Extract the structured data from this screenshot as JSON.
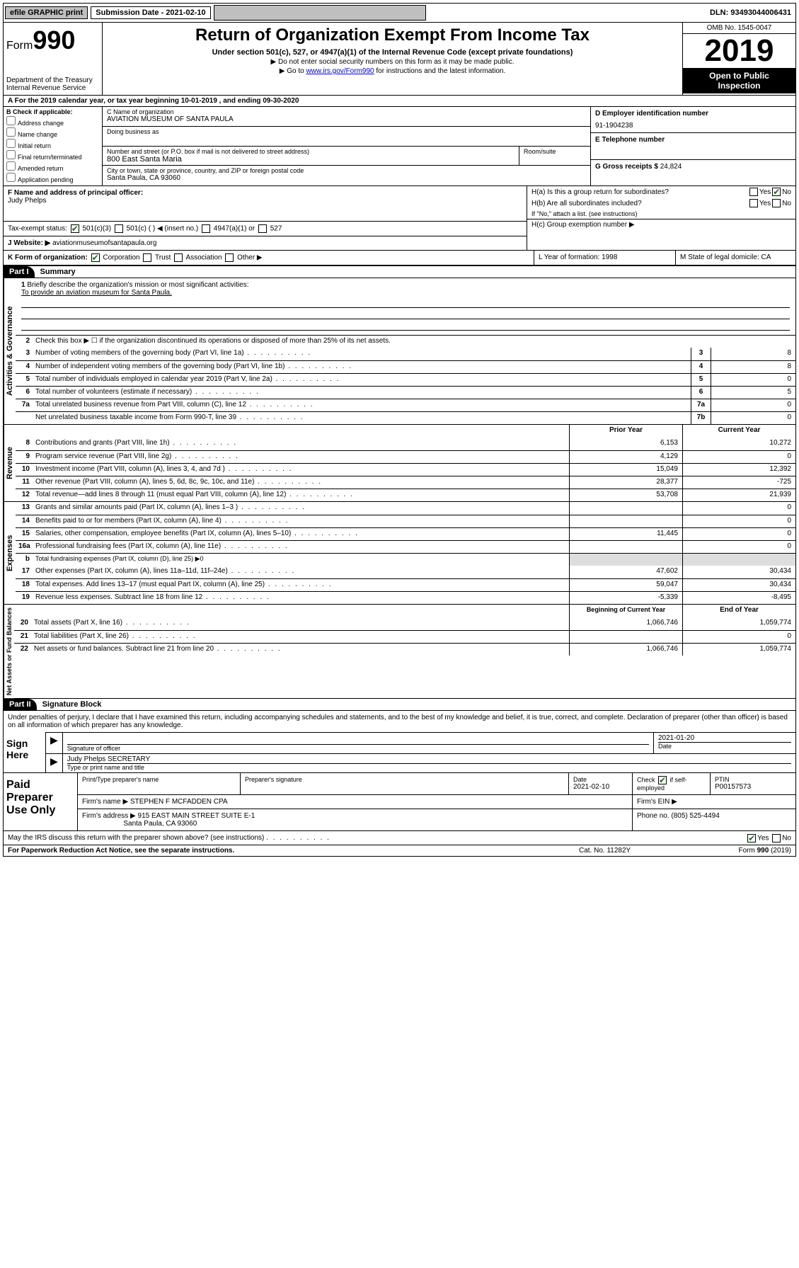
{
  "topbar": {
    "efile": "efile GRAPHIC print",
    "submission": "Submission Date - 2021-02-10",
    "dln": "DLN: 93493044006431"
  },
  "header": {
    "form_prefix": "Form",
    "form_number": "990",
    "dept1": "Department of the Treasury",
    "dept2": "Internal Revenue Service",
    "title": "Return of Organization Exempt From Income Tax",
    "subtitle": "Under section 501(c), 527, or 4947(a)(1) of the Internal Revenue Code (except private foundations)",
    "note1": "▶ Do not enter social security numbers on this form as it may be made public.",
    "note2_pre": "▶ Go to ",
    "note2_link": "www.irs.gov/Form990",
    "note2_post": " for instructions and the latest information.",
    "omb": "OMB No. 1545-0047",
    "year": "2019",
    "inspection1": "Open to Public",
    "inspection2": "Inspection"
  },
  "row_a": "A   For the 2019 calendar year, or tax year beginning 10-01-2019    , and ending 09-30-2020",
  "section_b": {
    "title": "B Check if applicable:",
    "opts": [
      "Address change",
      "Name change",
      "Initial return",
      "Final return/terminated",
      "Amended return",
      "Application pending"
    ]
  },
  "section_c": {
    "name_label": "C Name of organization",
    "name": "AVIATION MUSEUM OF SANTA PAULA",
    "dba_label": "Doing business as",
    "addr_label": "Number and street (or P.O. box if mail is not delivered to street address)",
    "room_label": "Room/suite",
    "addr": "800 East Santa Maria",
    "city_label": "City or town, state or province, country, and ZIP or foreign postal code",
    "city": "Santa Paula, CA  93060"
  },
  "section_d": {
    "label": "D Employer identification number",
    "value": "91-1904238"
  },
  "section_e": {
    "label": "E Telephone number",
    "value": ""
  },
  "section_g": {
    "label": "G Gross receipts $",
    "value": "24,824"
  },
  "section_f": {
    "label": "F  Name and address of principal officer:",
    "name": "Judy Phelps"
  },
  "section_h": {
    "ha": "H(a)  Is this a group return for subordinates?",
    "hb": "H(b)  Are all subordinates included?",
    "hb_note": "If \"No,\" attach a list. (see instructions)",
    "hc": "H(c)  Group exemption number ▶"
  },
  "tax_status": {
    "label": "Tax-exempt status:",
    "o1": "501(c)(3)",
    "o2": "501(c) (   ) ◀ (insert no.)",
    "o3": "4947(a)(1) or",
    "o4": "527"
  },
  "website": {
    "label": "J   Website: ▶",
    "value": "aviationmuseumofsantapaula.org"
  },
  "row_k": {
    "k": "K Form of organization:",
    "k_opts": [
      "Corporation",
      "Trust",
      "Association",
      "Other ▶"
    ],
    "l": "L Year of formation: 1998",
    "m": "M State of legal domicile: CA"
  },
  "part1": {
    "header": "Part I",
    "title": "Summary",
    "tab_gov": "Activities & Governance",
    "tab_rev": "Revenue",
    "tab_exp": "Expenses",
    "tab_net": "Net Assets or Fund Balances",
    "line1_label": "Briefly describe the organization's mission or most significant activities:",
    "line1_text": "To provide an aviation museum for Santa Paula.",
    "line2": "Check this box ▶ ☐  if the organization discontinued its operations or disposed of more than 25% of its net assets.",
    "lines_simple": [
      {
        "n": "3",
        "d": "Number of voting members of the governing body (Part VI, line 1a)",
        "b": "3",
        "v": "8"
      },
      {
        "n": "4",
        "d": "Number of independent voting members of the governing body (Part VI, line 1b)",
        "b": "4",
        "v": "8"
      },
      {
        "n": "5",
        "d": "Total number of individuals employed in calendar year 2019 (Part V, line 2a)",
        "b": "5",
        "v": "0"
      },
      {
        "n": "6",
        "d": "Total number of volunteers (estimate if necessary)",
        "b": "6",
        "v": "5"
      },
      {
        "n": "7a",
        "d": "Total unrelated business revenue from Part VIII, column (C), line 12",
        "b": "7a",
        "v": "0"
      },
      {
        "n": "",
        "d": "Net unrelated business taxable income from Form 990-T, line 39",
        "b": "7b",
        "v": "0"
      }
    ],
    "col_prior": "Prior Year",
    "col_current": "Current Year",
    "col_begin": "Beginning of Current Year",
    "col_end": "End of Year",
    "revenue": [
      {
        "n": "8",
        "d": "Contributions and grants (Part VIII, line 1h)",
        "p": "6,153",
        "c": "10,272"
      },
      {
        "n": "9",
        "d": "Program service revenue (Part VIII, line 2g)",
        "p": "4,129",
        "c": "0"
      },
      {
        "n": "10",
        "d": "Investment income (Part VIII, column (A), lines 3, 4, and 7d )",
        "p": "15,049",
        "c": "12,392"
      },
      {
        "n": "11",
        "d": "Other revenue (Part VIII, column (A), lines 5, 6d, 8c, 9c, 10c, and 11e)",
        "p": "28,377",
        "c": "-725"
      },
      {
        "n": "12",
        "d": "Total revenue—add lines 8 through 11 (must equal Part VIII, column (A), line 12)",
        "p": "53,708",
        "c": "21,939"
      }
    ],
    "expenses": [
      {
        "n": "13",
        "d": "Grants and similar amounts paid (Part IX, column (A), lines 1–3 )",
        "p": "",
        "c": "0"
      },
      {
        "n": "14",
        "d": "Benefits paid to or for members (Part IX, column (A), line 4)",
        "p": "",
        "c": "0"
      },
      {
        "n": "15",
        "d": "Salaries, other compensation, employee benefits (Part IX, column (A), lines 5–10)",
        "p": "11,445",
        "c": "0"
      },
      {
        "n": "16a",
        "d": "Professional fundraising fees (Part IX, column (A), line 11e)",
        "p": "",
        "c": "0"
      }
    ],
    "line16b": "Total fundraising expenses (Part IX, column (D), line 25) ▶0",
    "expenses2": [
      {
        "n": "17",
        "d": "Other expenses (Part IX, column (A), lines 11a–11d, 11f–24e)",
        "p": "47,602",
        "c": "30,434"
      },
      {
        "n": "18",
        "d": "Total expenses. Add lines 13–17 (must equal Part IX, column (A), line 25)",
        "p": "59,047",
        "c": "30,434"
      },
      {
        "n": "19",
        "d": "Revenue less expenses. Subtract line 18 from line 12",
        "p": "-5,339",
        "c": "-8,495"
      }
    ],
    "netassets": [
      {
        "n": "20",
        "d": "Total assets (Part X, line 16)",
        "p": "1,066,746",
        "c": "1,059,774"
      },
      {
        "n": "21",
        "d": "Total liabilities (Part X, line 26)",
        "p": "",
        "c": "0"
      },
      {
        "n": "22",
        "d": "Net assets or fund balances. Subtract line 21 from line 20",
        "p": "1,066,746",
        "c": "1,059,774"
      }
    ]
  },
  "part2": {
    "header": "Part II",
    "title": "Signature Block",
    "declare": "Under penalties of perjury, I declare that I have examined this return, including accompanying schedules and statements, and to the best of my knowledge and belief, it is true, correct, and complete. Declaration of preparer (other than officer) is based on all information of which preparer has any knowledge.",
    "sign_here": "Sign Here",
    "sig_officer": "Signature of officer",
    "sig_date": "2021-01-20",
    "date_label": "Date",
    "name_title": "Judy Phelps SECRETARY",
    "name_label": "Type or print name and title"
  },
  "paid": {
    "title": "Paid Preparer Use Only",
    "h1": "Print/Type preparer's name",
    "h2": "Preparer's signature",
    "h3": "Date",
    "date": "2021-02-10",
    "h4": "Check ☑ if self-employed",
    "h5": "PTIN",
    "ptin": "P00157573",
    "firm_label": "Firm's name    ▶",
    "firm": "STEPHEN F MCFADDEN CPA",
    "ein_label": "Firm's EIN ▶",
    "addr_label": "Firm's address ▶",
    "addr1": "915 EAST MAIN STREET SUITE E-1",
    "addr2": "Santa Paula, CA  93060",
    "phone_label": "Phone no.",
    "phone": "(805) 525-4494",
    "discuss": "May the IRS discuss this return with the preparer shown above? (see instructions)"
  },
  "footer": {
    "left": "For Paperwork Reduction Act Notice, see the separate instructions.",
    "mid": "Cat. No. 11282Y",
    "right": "Form 990 (2019)"
  },
  "yesno": {
    "yes": "Yes",
    "no": "No"
  }
}
